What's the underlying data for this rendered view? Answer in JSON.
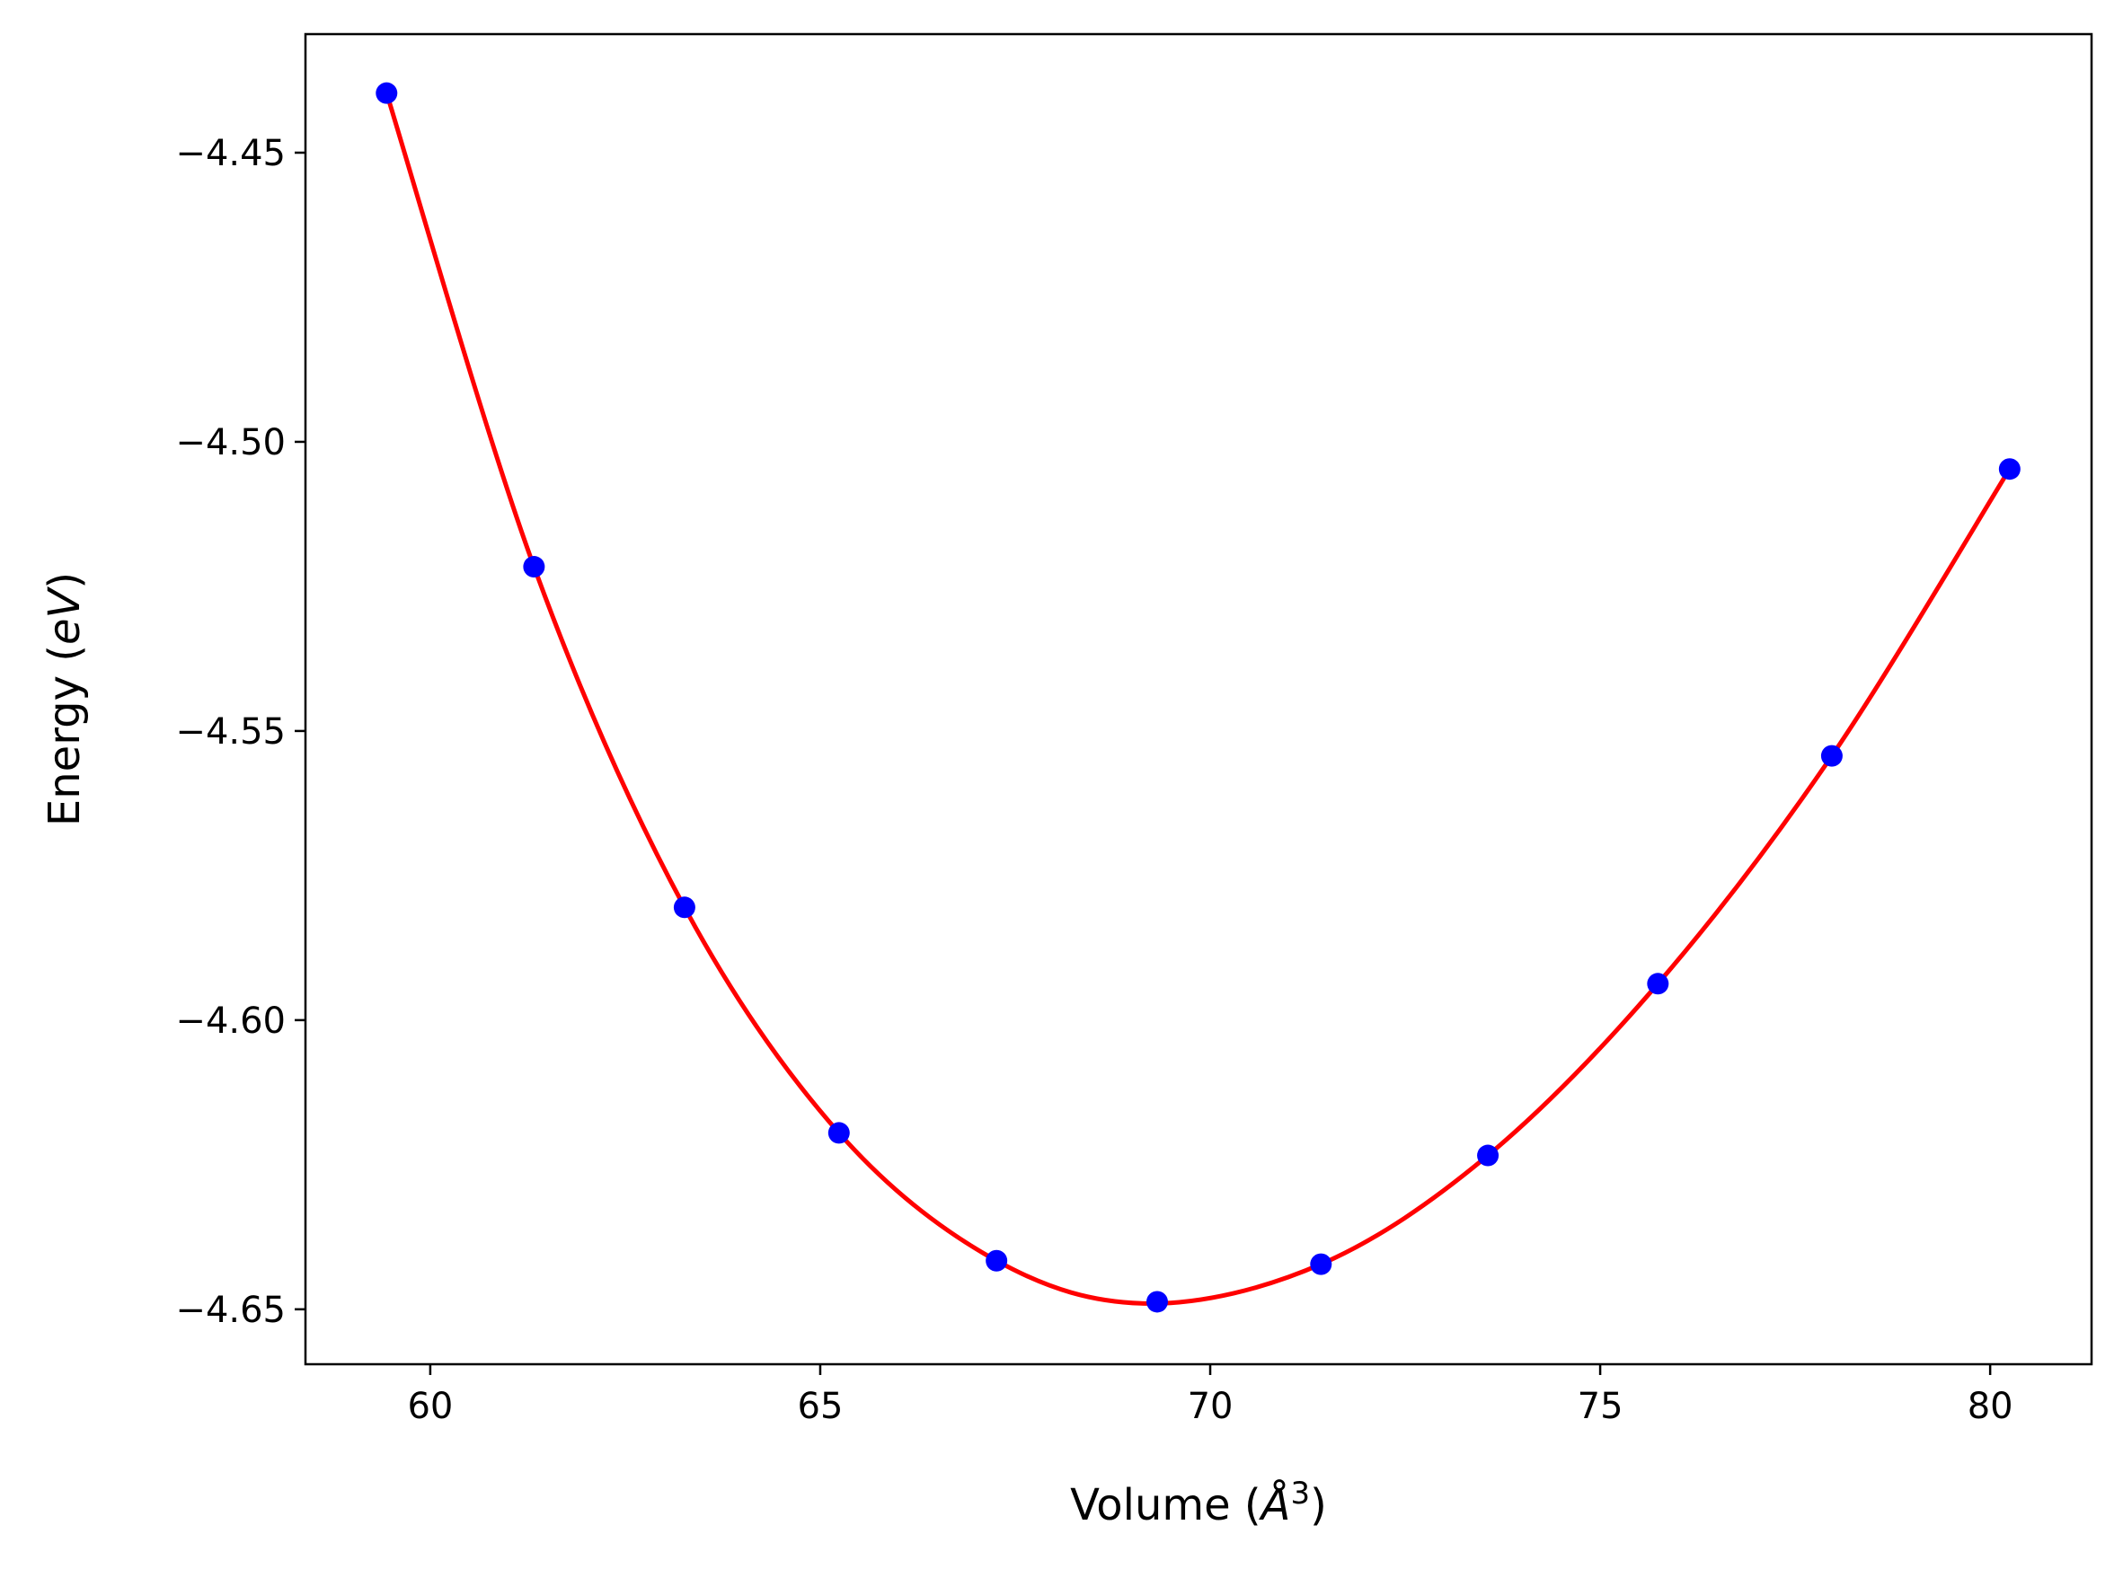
{
  "chart_data": {
    "type": "scatter",
    "title": "",
    "xlabel_parts": {
      "prefix": "Volume (",
      "unit": "Å",
      "sup": "3",
      "suffix": ")"
    },
    "ylabel_parts": {
      "prefix": "Energy (",
      "unit": "eV",
      "suffix": ")"
    },
    "xlim": [
      58.4,
      81.3
    ],
    "ylim": [
      -4.6595,
      -4.4295
    ],
    "x_ticks": [
      60,
      65,
      70,
      75,
      80
    ],
    "x_tick_labels": [
      "60",
      "65",
      "70",
      "75",
      "80"
    ],
    "y_ticks": [
      -4.45,
      -4.5,
      -4.55,
      -4.6,
      -4.65
    ],
    "y_tick_labels": [
      "−4.45",
      "−4.50",
      "−4.55",
      "−4.60",
      "−4.65"
    ],
    "grid": false,
    "legend": null,
    "series": [
      {
        "kind": "points",
        "color": "#0000ff",
        "points": [
          {
            "x": 59.44,
            "y": -4.4397
          },
          {
            "x": 61.33,
            "y": -4.5216
          },
          {
            "x": 63.26,
            "y": -4.5805
          },
          {
            "x": 65.24,
            "y": -4.6195
          },
          {
            "x": 67.26,
            "y": -4.6416
          },
          {
            "x": 69.32,
            "y": -4.6487
          },
          {
            "x": 71.42,
            "y": -4.6422
          },
          {
            "x": 73.56,
            "y": -4.6234
          },
          {
            "x": 75.74,
            "y": -4.5937
          },
          {
            "x": 77.97,
            "y": -4.5543
          },
          {
            "x": 80.25,
            "y": -4.5047
          }
        ]
      },
      {
        "kind": "fit-curve",
        "color": "#ff0000",
        "points": [
          {
            "x": 59.44,
            "y": -4.4397
          },
          {
            "x": 61.33,
            "y": -4.5216
          },
          {
            "x": 63.26,
            "y": -4.5805
          },
          {
            "x": 65.24,
            "y": -4.6195
          },
          {
            "x": 67.26,
            "y": -4.6416
          },
          {
            "x": 69.2,
            "y": -4.649
          },
          {
            "x": 71.42,
            "y": -4.6422
          },
          {
            "x": 73.56,
            "y": -4.6234
          },
          {
            "x": 75.74,
            "y": -4.5937
          },
          {
            "x": 77.97,
            "y": -4.5543
          },
          {
            "x": 80.25,
            "y": -4.5047
          }
        ]
      }
    ]
  }
}
